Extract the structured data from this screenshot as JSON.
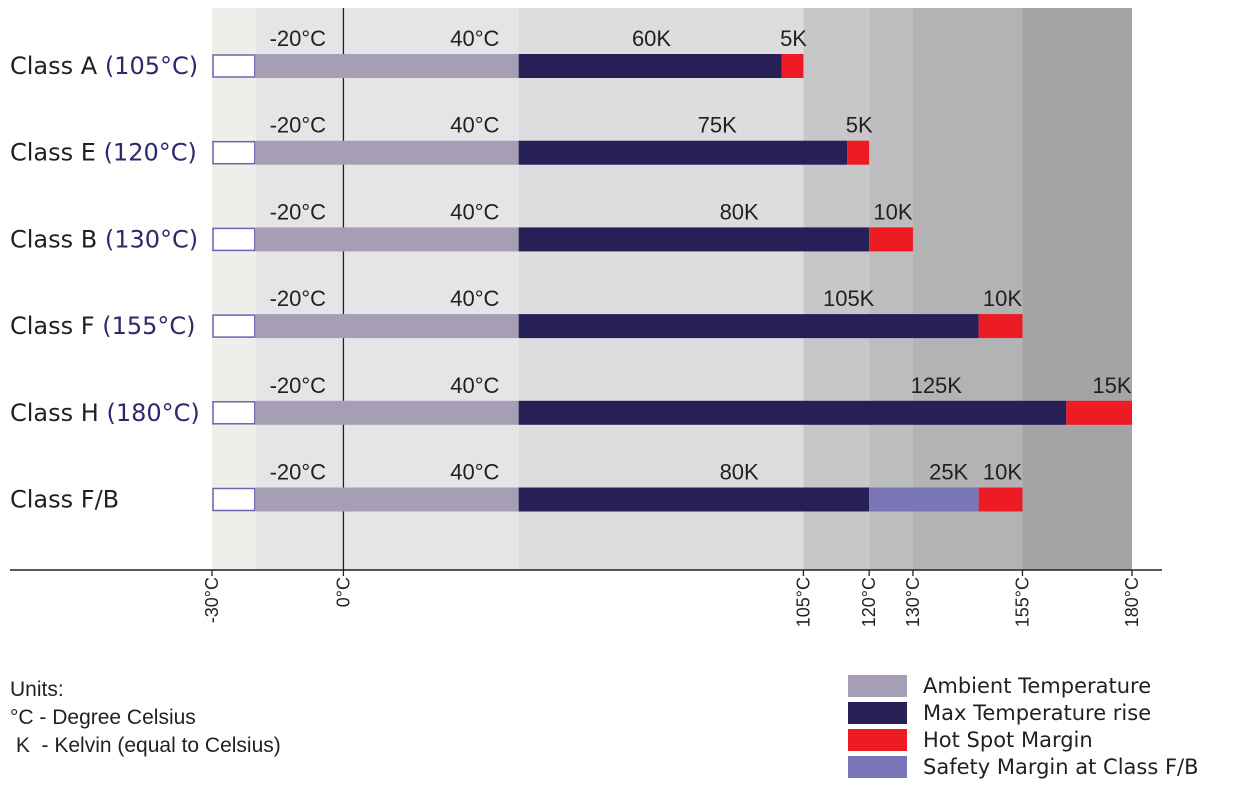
{
  "colors": {
    "ambient": "#a59eb4",
    "max_rise": "#262057",
    "hot_spot": "#ed1c24",
    "safety": "#7a75b6",
    "box_border": "#6b63b0",
    "axis": "#231f20",
    "class_temp": "#2b2a6b",
    "zone_minus30": "#eeeeea",
    "zone_ambient": "#e5e5e7",
    "zone_mid": "#dddddf",
    "zone_105": "#c7c7c9",
    "zone_120": "#bdbdbf",
    "zone_130": "#b3b3b5",
    "zone_155": "#a4a4a6"
  },
  "chart_data": {
    "type": "bar",
    "orientation": "horizontal-stacked",
    "title": "",
    "x_axis": {
      "unit": "°C",
      "range": [
        -30,
        180
      ],
      "ticks": [
        -30,
        0,
        105,
        120,
        130,
        155,
        180
      ],
      "tick_labels": [
        "-30°C",
        "0°C",
        "105°C",
        "120°C",
        "130°C",
        "155°C",
        "180°C"
      ]
    },
    "background_zones": [
      {
        "from": -30,
        "to": -20,
        "color": "#eeeeea"
      },
      {
        "from": -20,
        "to": 40,
        "color": "#e5e5e7"
      },
      {
        "from": 40,
        "to": 105,
        "color": "#dddddf"
      },
      {
        "from": 105,
        "to": 120,
        "color": "#c7c7c9"
      },
      {
        "from": 120,
        "to": 130,
        "color": "#bdbdbf"
      },
      {
        "from": 130,
        "to": 155,
        "color": "#b3b3b5"
      },
      {
        "from": 155,
        "to": 180,
        "color": "#a4a4a6"
      }
    ],
    "rows": [
      {
        "class_name": "Class A",
        "class_temp": "(105°C)",
        "segments": [
          {
            "kind": "ambient",
            "from": -20,
            "to": 40,
            "labels": [
              "-20°C",
              "40°C"
            ]
          },
          {
            "kind": "max_rise",
            "from": 40,
            "to": 100,
            "value": 60,
            "label": "60K"
          },
          {
            "kind": "hot_spot",
            "from": 100,
            "to": 105,
            "value": 5,
            "label": "5K"
          }
        ]
      },
      {
        "class_name": "Class E",
        "class_temp": "(120°C)",
        "segments": [
          {
            "kind": "ambient",
            "from": -20,
            "to": 40,
            "labels": [
              "-20°C",
              "40°C"
            ]
          },
          {
            "kind": "max_rise",
            "from": 40,
            "to": 115,
            "value": 75,
            "label": "75K"
          },
          {
            "kind": "hot_spot",
            "from": 115,
            "to": 120,
            "value": 5,
            "label": "5K"
          }
        ]
      },
      {
        "class_name": "Class B",
        "class_temp": "(130°C)",
        "segments": [
          {
            "kind": "ambient",
            "from": -20,
            "to": 40,
            "labels": [
              "-20°C",
              "40°C"
            ]
          },
          {
            "kind": "max_rise",
            "from": 40,
            "to": 120,
            "value": 80,
            "label": "80K"
          },
          {
            "kind": "hot_spot",
            "from": 120,
            "to": 130,
            "value": 10,
            "label": "10K"
          }
        ]
      },
      {
        "class_name": "Class F",
        "class_temp": "(155°C)",
        "segments": [
          {
            "kind": "ambient",
            "from": -20,
            "to": 40,
            "labels": [
              "-20°C",
              "40°C"
            ]
          },
          {
            "kind": "max_rise",
            "from": 40,
            "to": 145,
            "value": 105,
            "label": "105K"
          },
          {
            "kind": "hot_spot",
            "from": 145,
            "to": 155,
            "value": 10,
            "label": "10K"
          }
        ]
      },
      {
        "class_name": "Class H",
        "class_temp": "(180°C)",
        "segments": [
          {
            "kind": "ambient",
            "from": -20,
            "to": 40,
            "labels": [
              "-20°C",
              "40°C"
            ]
          },
          {
            "kind": "max_rise",
            "from": 40,
            "to": 165,
            "value": 125,
            "label": "125K"
          },
          {
            "kind": "hot_spot",
            "from": 165,
            "to": 180,
            "value": 15,
            "label": "15K"
          }
        ]
      },
      {
        "class_name": "Class F/B",
        "class_temp": "",
        "segments": [
          {
            "kind": "ambient",
            "from": -20,
            "to": 40,
            "labels": [
              "-20°C",
              "40°C"
            ]
          },
          {
            "kind": "max_rise",
            "from": 40,
            "to": 120,
            "value": 80,
            "label": "80K"
          },
          {
            "kind": "safety",
            "from": 120,
            "to": 145,
            "value": 25,
            "label": "25K"
          },
          {
            "kind": "hot_spot",
            "from": 145,
            "to": 155,
            "value": 10,
            "label": "10K"
          }
        ]
      }
    ],
    "legend": [
      {
        "kind": "ambient",
        "label": "Ambient Temperature"
      },
      {
        "kind": "max_rise",
        "label": "Max Temperature rise"
      },
      {
        "kind": "hot_spot",
        "label": "Hot Spot Margin"
      },
      {
        "kind": "safety",
        "label": "Safety Margin at Class F/B"
      }
    ],
    "legend_placement": "bottom-right"
  },
  "units": {
    "title": "Units:",
    "celsius": "°C - Degree Celsius",
    "kelvin": " K  - Kelvin (equal to Celsius)"
  }
}
